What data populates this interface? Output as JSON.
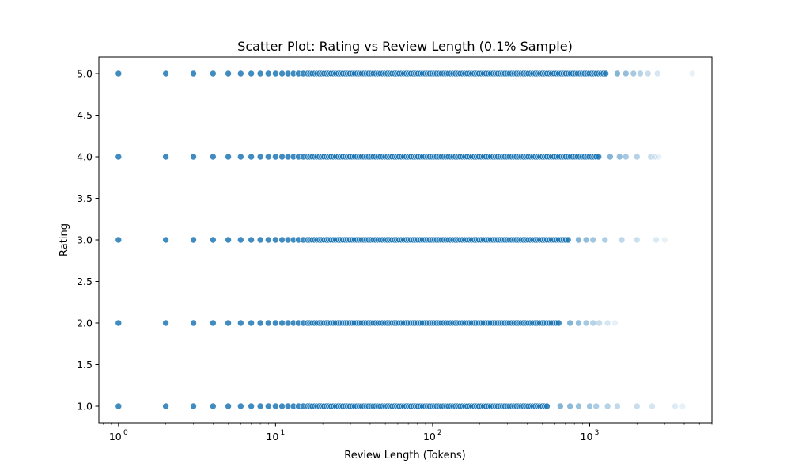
{
  "chart_data": {
    "type": "scatter",
    "title": "Scatter Plot: Rating vs Review Length (0.1% Sample)",
    "xlabel": "Review Length (Tokens)",
    "ylabel": "Rating",
    "xscale": "log",
    "xlim": [
      0.75,
      6000
    ],
    "ylim": [
      0.8,
      5.2
    ],
    "grid": false,
    "color": "#1f77b4",
    "x_ticks": [
      {
        "value": 1,
        "base": "10",
        "exp": "0"
      },
      {
        "value": 10,
        "base": "10",
        "exp": "1"
      },
      {
        "value": 100,
        "base": "10",
        "exp": "2"
      },
      {
        "value": 1000,
        "base": "10",
        "exp": "3"
      }
    ],
    "y_ticks": [
      "1.0",
      "1.5",
      "2.0",
      "2.5",
      "3.0",
      "3.5",
      "4.0",
      "4.5",
      "5.0"
    ],
    "series": [
      {
        "rating": 5.0,
        "dense_max": 1300,
        "sparse": [
          1500,
          1700,
          1900,
          2100,
          2350,
          2700,
          4500
        ]
      },
      {
        "rating": 4.0,
        "dense_max": 1150,
        "sparse": [
          1350,
          1550,
          1700,
          2000,
          2450,
          2600,
          2750
        ]
      },
      {
        "rating": 3.0,
        "dense_max": 750,
        "sparse": [
          850,
          950,
          1050,
          1250,
          1600,
          2000,
          2650,
          3000
        ]
      },
      {
        "rating": 2.0,
        "dense_max": 650,
        "sparse": [
          750,
          850,
          950,
          1050,
          1150,
          1300,
          1450
        ]
      },
      {
        "rating": 1.0,
        "dense_max": 550,
        "sparse": [
          650,
          750,
          850,
          1000,
          1100,
          1300,
          1500,
          2000,
          2500,
          3500,
          3900
        ]
      }
    ]
  }
}
